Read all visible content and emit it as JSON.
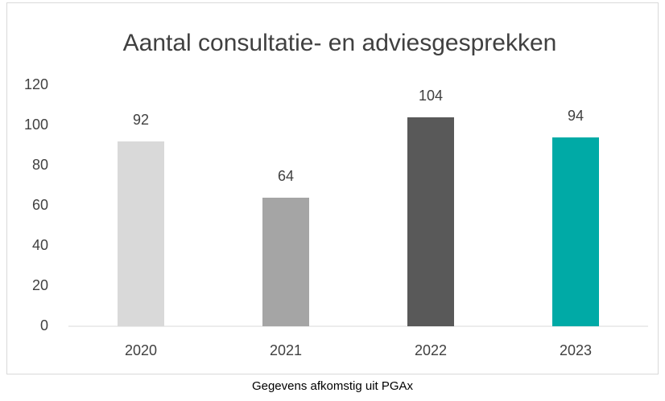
{
  "chart_data": {
    "type": "bar",
    "title": "Aantal consultatie- en adviesgesprekken",
    "categories": [
      "2020",
      "2021",
      "2022",
      "2023"
    ],
    "values": [
      92,
      64,
      104,
      94
    ],
    "colors": [
      "#d9d9d9",
      "#a5a5a5",
      "#595959",
      "#00aaa6"
    ],
    "ylim": [
      0,
      120
    ],
    "yticks": [
      0,
      20,
      40,
      60,
      80,
      100,
      120
    ],
    "grid": false,
    "caption": "Gegevens afkomstig uit PGAx"
  }
}
